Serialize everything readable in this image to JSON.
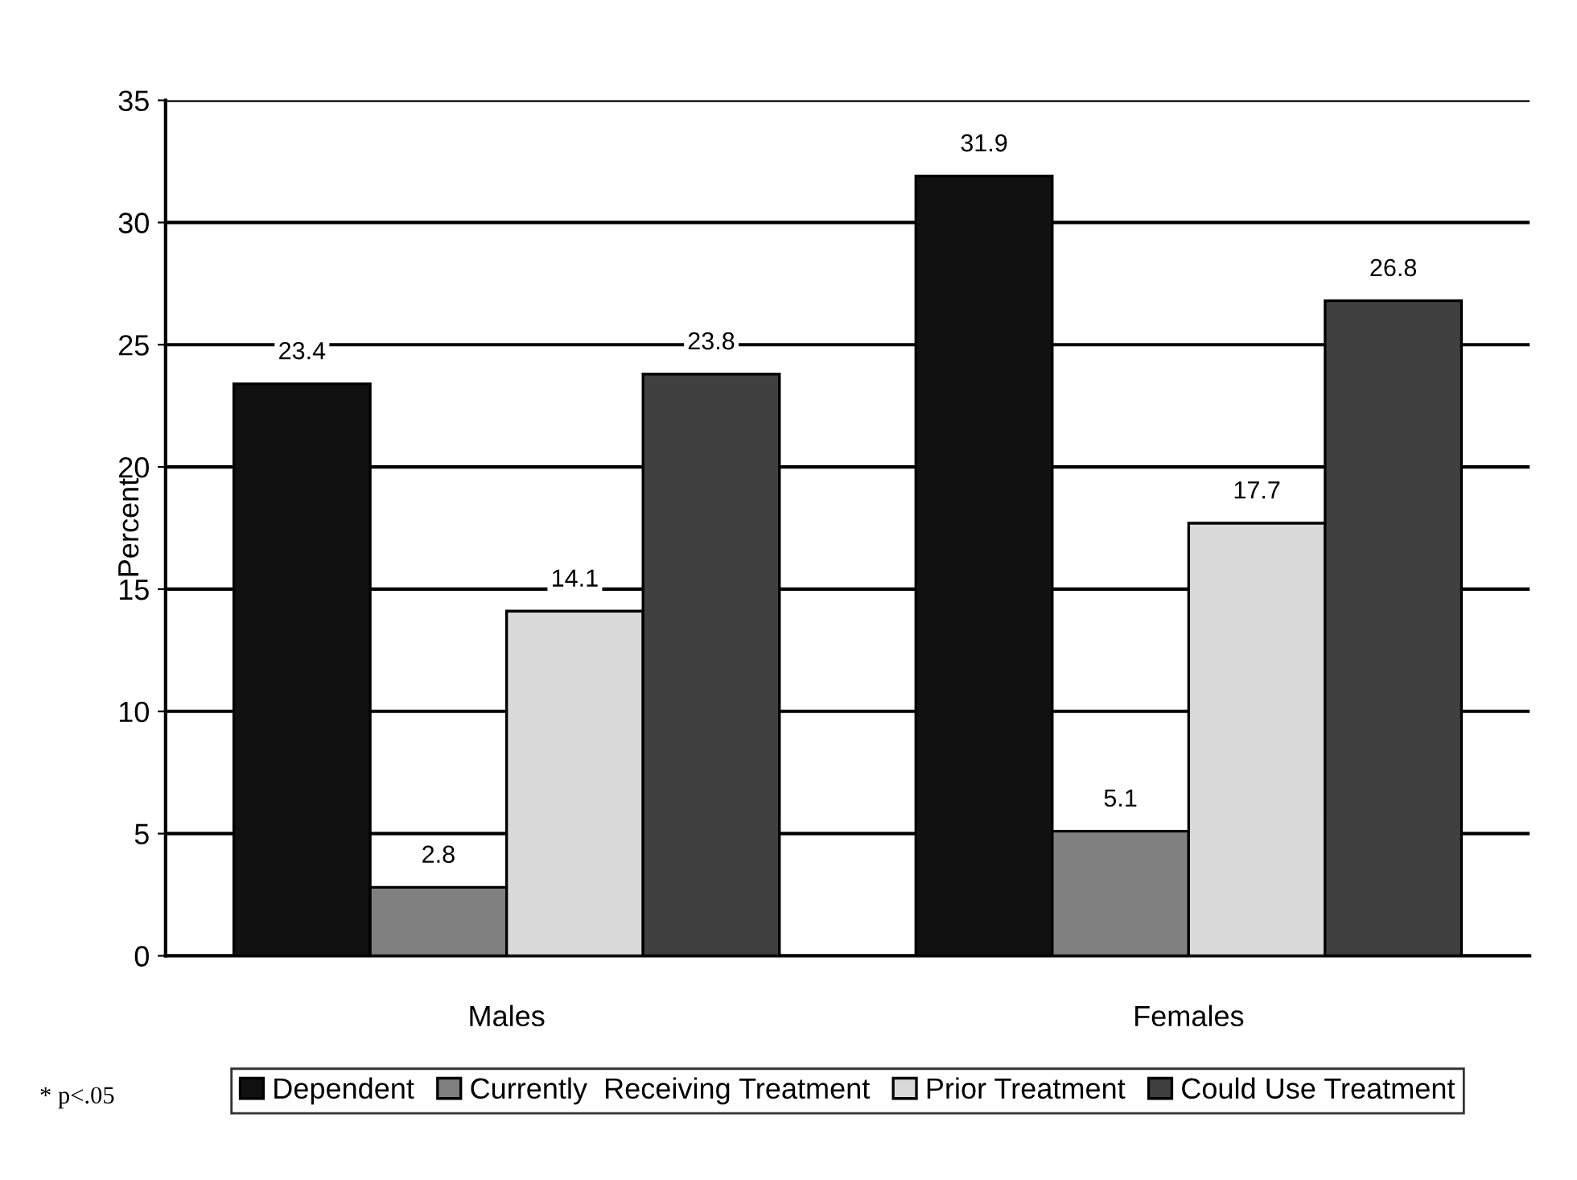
{
  "chart_data": {
    "type": "bar",
    "ylabel": "Percent",
    "categories": [
      "Males",
      "Females"
    ],
    "series": [
      {
        "name": "Dependent",
        "color": "#111111",
        "values": [
          23.4,
          31.9
        ]
      },
      {
        "name": "Currently  Receiving Treatment",
        "color": "#808080",
        "values": [
          2.8,
          5.1
        ]
      },
      {
        "name": "Prior Treatment",
        "color": "#d9d9d9",
        "values": [
          14.1,
          17.7
        ]
      },
      {
        "name": "Could Use Treatment",
        "color": "#404040",
        "values": [
          23.8,
          26.8
        ]
      }
    ],
    "ylim": [
      0,
      35
    ],
    "yticks": [
      0,
      5,
      10,
      15,
      20,
      25,
      30,
      35
    ],
    "grid": "y",
    "legend": "bottom",
    "data_labels": true,
    "annotations": [
      "* p<.05"
    ]
  }
}
